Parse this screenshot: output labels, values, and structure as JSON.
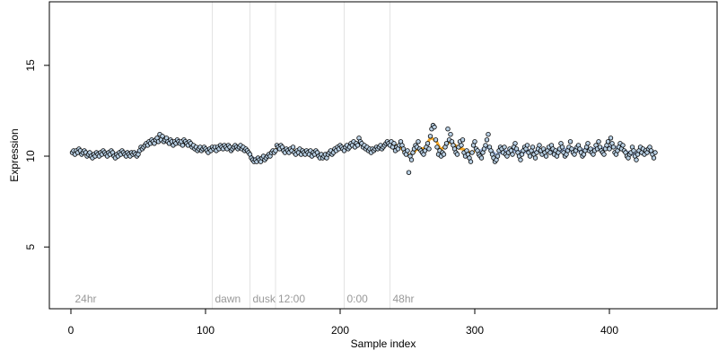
{
  "chart_data": {
    "type": "scatter",
    "xlabel": "Sample index",
    "ylabel": "Expression",
    "xlim": [
      -16,
      480
    ],
    "ylim": [
      1.6,
      18.5
    ],
    "x_ticks": [
      0,
      100,
      200,
      300,
      400
    ],
    "y_ticks": [
      5,
      10,
      15
    ],
    "grid": false,
    "regions": [
      {
        "label": "24hr",
        "start": 1
      },
      {
        "label": "dawn",
        "start": 105
      },
      {
        "label": "dusk",
        "start": 133
      },
      {
        "label": "12:00",
        "start": 152
      },
      {
        "label": "0:00",
        "start": 203
      },
      {
        "label": "48hr",
        "start": 237
      }
    ],
    "series": [
      {
        "values": [
          10.2,
          10.3,
          10.1,
          10.3,
          10.2,
          10.4,
          10.3,
          10.1,
          10.2,
          10.3,
          10.2,
          10.0,
          10.1,
          10.2,
          10.0,
          9.9,
          10.1,
          10.0,
          10.2,
          10.1,
          10.0,
          10.2,
          10.1,
          10.3,
          10.2,
          10.1,
          10.0,
          10.2,
          10.1,
          10.3,
          10.2,
          10.0,
          9.9,
          10.1,
          10.0,
          10.2,
          10.1,
          10.3,
          10.2,
          10.1,
          10.0,
          10.2,
          10.1,
          10.0,
          10.2,
          10.1,
          10.2,
          10.1,
          10.0,
          10.1,
          10.3,
          10.5,
          10.4,
          10.5,
          10.6,
          10.7,
          10.6,
          10.8,
          10.7,
          10.9,
          10.8,
          10.7,
          10.9,
          11.0,
          10.8,
          11.2,
          10.9,
          11.1,
          10.8,
          10.9,
          11.0,
          10.8,
          10.7,
          10.9,
          10.8,
          10.6,
          10.8,
          10.7,
          10.9,
          10.8,
          10.7,
          10.8,
          10.6,
          10.9,
          10.8,
          10.7,
          10.6,
          10.8,
          10.7,
          10.5,
          10.6,
          10.4,
          10.5,
          10.3,
          10.4,
          10.5,
          10.3,
          10.4,
          10.5,
          10.4,
          10.3,
          10.2,
          10.4,
          10.3,
          10.5,
          10.4,
          10.5,
          10.3,
          10.5,
          10.4,
          10.6,
          10.5,
          10.4,
          10.6,
          10.5,
          10.4,
          10.6,
          10.5,
          10.3,
          10.4,
          10.5,
          10.6,
          10.5,
          10.4,
          10.5,
          10.6,
          10.4,
          10.5,
          10.3,
          10.4,
          10.3,
          10.2,
          10.1,
          9.9,
          9.8,
          9.7,
          9.8,
          9.7,
          9.9,
          9.8,
          9.7,
          9.9,
          10.0,
          9.8,
          9.9,
          10.0,
          10.1,
          10.0,
          10.2,
          10.3,
          10.2,
          10.3,
          10.6,
          10.5,
          10.4,
          10.6,
          10.5,
          10.3,
          10.2,
          10.4,
          10.3,
          10.2,
          10.4,
          10.3,
          10.5,
          10.2,
          10.1,
          10.3,
          10.2,
          10.4,
          10.1,
          10.3,
          10.2,
          10.1,
          10.3,
          10.2,
          10.1,
          10.3,
          10.0,
          10.2,
          10.1,
          10.3,
          10.2,
          10.0,
          9.9,
          10.1,
          9.9,
          10.0,
          10.1,
          9.9,
          10.1,
          10.2,
          10.3,
          10.1,
          10.2,
          10.4,
          10.3,
          10.5,
          10.4,
          10.6,
          10.5,
          10.4,
          10.3,
          10.5,
          10.6,
          10.4,
          10.5,
          10.7,
          10.6,
          10.8,
          10.5,
          10.7,
          10.6,
          11.0,
          10.8,
          10.7,
          10.5,
          10.6,
          10.4,
          10.5,
          10.3,
          10.4,
          10.2,
          10.4,
          10.3,
          10.4,
          10.5,
          10.4,
          10.5,
          10.6,
          10.4,
          10.5,
          10.6,
          10.7,
          10.8,
          10.7,
          10.6,
          10.8,
          10.5,
          10.7,
          10.3,
          10.5,
          10.4,
          10.6,
          10.8,
          10.6,
          10.4,
          10.2,
          10.1,
          10.3,
          9.1,
          10.0,
          9.8,
          10.2,
          10.4,
          10.6,
          10.5,
          10.8,
          10.4,
          10.3,
          10.2,
          10.1,
          10.3,
          10.5,
          10.7,
          10.4,
          11.1,
          11.5,
          11.7,
          11.6,
          10.9,
          10.5,
          10.1,
          10.3,
          10.0,
          10.2,
          10.1,
          10.5,
          10.7,
          11.5,
          10.9,
          11.2,
          10.8,
          10.6,
          10.4,
          10.2,
          10.1,
          10.5,
          10.8,
          10.6,
          10.9,
          10.2,
          10.0,
          10.3,
          10.1,
          9.9,
          9.7,
          10.2,
          10.6,
          10.8,
          10.4,
          10.3,
          10.1,
          10.0,
          9.9,
          10.2,
          10.4,
          10.6,
          10.9,
          11.2,
          10.5,
          10.3,
          10.1,
          9.9,
          9.7,
          9.8,
          10.0,
          10.3,
          10.5,
          10.4,
          10.2,
          10.5,
          10.1,
          10.0,
          10.2,
          10.4,
          10.3,
          10.1,
          10.5,
          10.7,
          10.4,
          10.2,
          10.0,
          9.8,
          10.1,
          10.3,
          10.5,
          10.4,
          10.6,
          10.2,
          10.0,
          10.3,
          10.5,
          10.1,
          9.9,
          10.2,
          10.4,
          10.6,
          10.3,
          10.1,
          10.4,
          10.2,
          10.0,
          10.3,
          10.5,
          10.2,
          10.6,
          10.4,
          10.1,
          10.3,
          10.0,
          10.2,
          10.4,
          10.7,
          10.5,
          10.2,
          10.0,
          10.1,
          10.3,
          10.5,
          10.8,
          10.4,
          10.2,
          10.1,
          10.3,
          10.5,
          10.6,
          10.4,
          10.2,
          10.0,
          10.1,
          10.3,
          10.5,
          10.7,
          10.3,
          10.4,
          10.2,
          10.1,
          10.3,
          10.6,
          10.4,
          10.8,
          10.5,
          10.3,
          10.2,
          10.1,
          10.4,
          10.6,
          10.8,
          10.4,
          11.0,
          10.7,
          10.5,
          10.2,
          10.1,
          10.3,
          10.5,
          10.7,
          10.4,
          10.6,
          10.3,
          10.2,
          10.0,
          9.9,
          10.1,
          10.2,
          10.5,
          10.3,
          10.0,
          9.8,
          10.1,
          10.3,
          10.5,
          10.2,
          10.4,
          10.1,
          10.3,
          10.2,
          10.4,
          10.5,
          10.3,
          10.1,
          9.9,
          10.2
        ]
      }
    ]
  },
  "colors": {
    "point_fill": "#b9d0e4",
    "point_stroke": "#000000",
    "trend_a": "#f5a623",
    "trend_b": "#9bb4dd",
    "region_line": "#e3e3e3",
    "region_text": "#999999"
  }
}
